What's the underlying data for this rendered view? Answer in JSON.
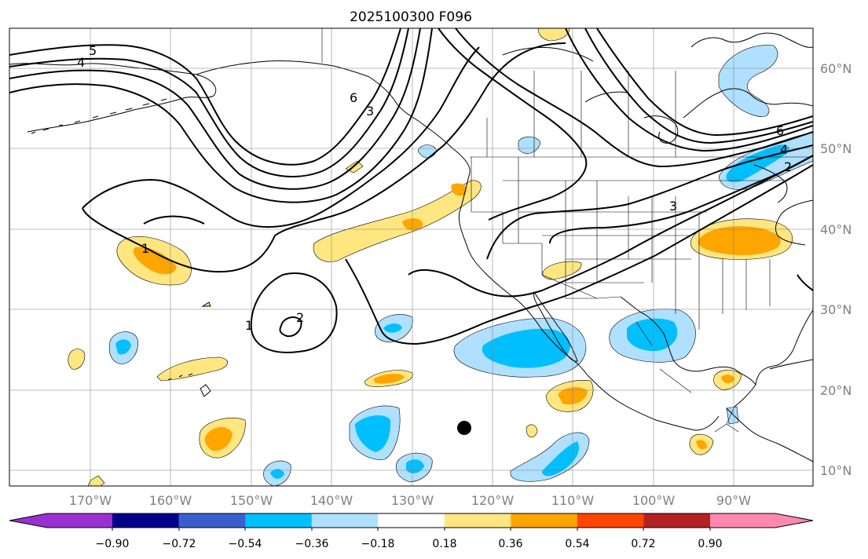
{
  "title": "2025100300 F096",
  "lon_labels": [
    "170°W",
    "160°W",
    "150°W",
    "140°W",
    "130°W",
    "120°W",
    "110°W",
    "100°W",
    "90°W"
  ],
  "lat_labels": [
    "60°N",
    "50°N",
    "40°N",
    "30°N",
    "20°N",
    "10°N"
  ],
  "colorbar": {
    "colors": [
      "#9b30d0",
      "#00008b",
      "#3a5fcd",
      "#00bfff",
      "#b0e0ff",
      "#ffffff",
      "#ffe680",
      "#ffa500",
      "#ff4500",
      "#b22222",
      "#ff88b0"
    ],
    "tick_labels": [
      "−0.90",
      "−0.72",
      "−0.54",
      "−0.36",
      "−0.18",
      "0.18",
      "0.36",
      "0.54",
      "0.72",
      "0.90"
    ]
  },
  "contour_labels": [
    "5",
    "4",
    "6",
    "3",
    "1",
    "2",
    "1",
    "6",
    "4",
    "2",
    "3"
  ],
  "marker": "black-dot",
  "colors": {
    "light_yellow": "#ffe680",
    "orange": "#ffa500",
    "light_blue": "#b0e0ff",
    "cyan": "#00bfff"
  }
}
